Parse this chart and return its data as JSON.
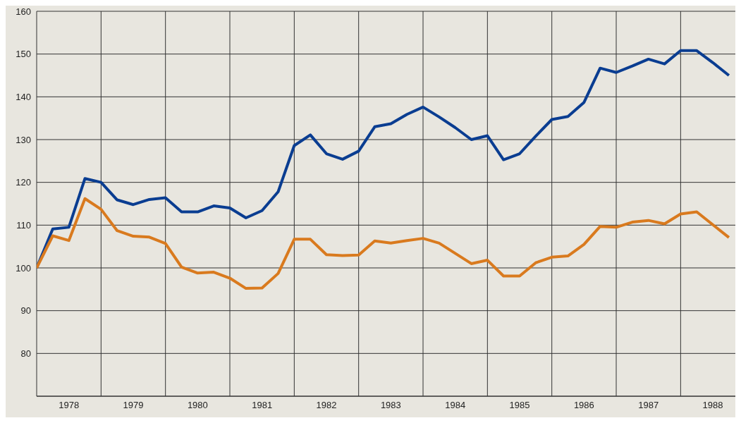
{
  "chart_data": {
    "type": "line",
    "x": [
      1978,
      1978.25,
      1978.5,
      1978.75,
      1979,
      1979.25,
      1979.5,
      1979.75,
      1980,
      1980.25,
      1980.5,
      1980.75,
      1981,
      1981.25,
      1981.5,
      1981.75,
      1982,
      1982.25,
      1982.5,
      1982.75,
      1983,
      1983.25,
      1983.5,
      1983.75,
      1984,
      1984.25,
      1984.5,
      1984.75,
      1985,
      1985.25,
      1985.5,
      1985.75,
      1986,
      1986.25,
      1986.5,
      1986.75,
      1987,
      1987.25,
      1987.5,
      1987.75,
      1988,
      1988.25,
      1988.5,
      1988.75
    ],
    "series": [
      {
        "color": "#0a3d91",
        "values": [
          100,
          109.1,
          109.5,
          120.9,
          120,
          115.9,
          114.8,
          116,
          116.4,
          113.1,
          113.1,
          114.5,
          114,
          111.7,
          113.4,
          117.8,
          128.6,
          131.1,
          126.7,
          125.4,
          127.3,
          133,
          133.7,
          135.9,
          137.6,
          135.3,
          132.8,
          130,
          130.9,
          125.3,
          126.7,
          130.8,
          134.7,
          135.4,
          138.7,
          146.7,
          145.7,
          147.2,
          148.8,
          147.7,
          150.8,
          150.8,
          148,
          145
        ]
      },
      {
        "color": "#d97a1e",
        "values": [
          100,
          107.5,
          106.4,
          116.2,
          113.7,
          108.7,
          107.4,
          107.2,
          105.7,
          100.2,
          98.8,
          99,
          97.6,
          95.2,
          95.3,
          98.7,
          106.7,
          106.7,
          103.1,
          102.9,
          103,
          106.3,
          105.8,
          106.4,
          106.9,
          105.8,
          103.4,
          101,
          101.8,
          98.1,
          98.1,
          101.2,
          102.5,
          102.8,
          105.5,
          109.7,
          109.5,
          110.7,
          111.1,
          110.3,
          112.6,
          113.1,
          110.1,
          107.1
        ]
      }
    ],
    "xlim": [
      1978,
      1988.85
    ],
    "xticks": [
      {
        "value": 1978,
        "label": null
      },
      {
        "value": 1978.5,
        "label": "1978"
      },
      {
        "value": 1979,
        "label": null
      },
      {
        "value": 1979.5,
        "label": "1979"
      },
      {
        "value": 1980,
        "label": null
      },
      {
        "value": 1980.5,
        "label": "1980"
      },
      {
        "value": 1981,
        "label": null
      },
      {
        "value": 1981.5,
        "label": "1981"
      },
      {
        "value": 1982,
        "label": null
      },
      {
        "value": 1982.5,
        "label": "1982"
      },
      {
        "value": 1983,
        "label": null
      },
      {
        "value": 1983.5,
        "label": "1983"
      },
      {
        "value": 1984,
        "label": null
      },
      {
        "value": 1984.5,
        "label": "1984"
      },
      {
        "value": 1985,
        "label": null
      },
      {
        "value": 1985.5,
        "label": "1985"
      },
      {
        "value": 1986,
        "label": null
      },
      {
        "value": 1986.5,
        "label": "1986"
      },
      {
        "value": 1987,
        "label": null
      },
      {
        "value": 1987.5,
        "label": "1987"
      },
      {
        "value": 1988,
        "label": null
      },
      {
        "value": 1988.5,
        "label": "1988"
      }
    ],
    "ylim": [
      70,
      160
    ],
    "yticks": [
      {
        "value": 70,
        "label": null
      },
      80,
      90,
      100,
      110,
      120,
      130,
      140,
      150,
      160
    ],
    "grid": true,
    "marker": "none",
    "line_style": "solid"
  }
}
